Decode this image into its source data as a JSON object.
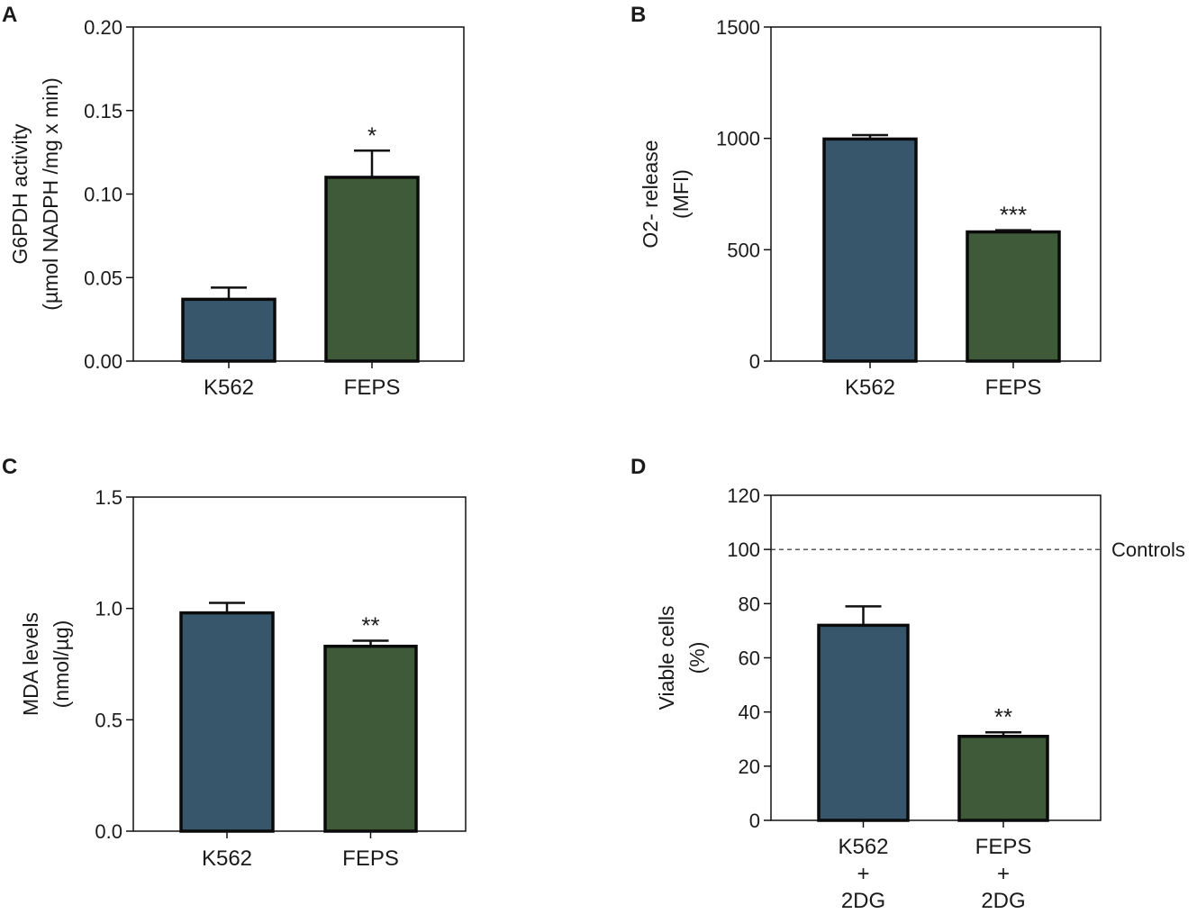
{
  "chart_data": [
    {
      "panel": "A",
      "type": "bar",
      "categories": [
        "K562",
        "FEPS"
      ],
      "values": [
        0.037,
        0.11
      ],
      "errors": [
        0.007,
        0.016
      ],
      "significance": [
        "",
        "*"
      ],
      "colors": [
        "#37566c",
        "#3f5a39"
      ],
      "ylabel": [
        "G6PDH activity",
        "(µmol NADPH /mg x min)"
      ],
      "ylim": [
        0,
        0.2
      ],
      "yticks": [
        "0.00",
        "0.05",
        "0.10",
        "0.15",
        "0.20"
      ],
      "ytick_values": [
        0,
        0.05,
        0.1,
        0.15,
        0.2
      ],
      "reference_line": null
    },
    {
      "panel": "B",
      "type": "bar",
      "categories": [
        "K562",
        "FEPS"
      ],
      "values": [
        997,
        580
      ],
      "errors": [
        18,
        8
      ],
      "significance": [
        "",
        "***"
      ],
      "colors": [
        "#37566c",
        "#3f5a39"
      ],
      "ylabel": [
        "O2- release",
        "(MFI)"
      ],
      "ylim": [
        0,
        1500
      ],
      "yticks": [
        "0",
        "500",
        "1000",
        "1500"
      ],
      "ytick_values": [
        0,
        500,
        1000,
        1500
      ],
      "reference_line": null
    },
    {
      "panel": "C",
      "type": "bar",
      "categories": [
        "K562",
        "FEPS"
      ],
      "values": [
        0.98,
        0.83
      ],
      "errors": [
        0.045,
        0.025
      ],
      "significance": [
        "",
        "**"
      ],
      "colors": [
        "#37566c",
        "#3f5a39"
      ],
      "ylabel": [
        "MDA levels",
        "(nmol/µg)"
      ],
      "ylim": [
        0,
        1.5
      ],
      "yticks": [
        "0.0",
        "0.5",
        "1.0",
        "1.5"
      ],
      "ytick_values": [
        0,
        0.5,
        1,
        1.5
      ],
      "reference_line": null
    },
    {
      "panel": "D",
      "type": "bar",
      "categories": [
        [
          "K562",
          "+",
          "2DG"
        ],
        [
          "FEPS",
          "+",
          "2DG"
        ]
      ],
      "values": [
        72,
        31
      ],
      "errors": [
        7,
        1.5
      ],
      "significance": [
        "",
        "**"
      ],
      "colors": [
        "#37566c",
        "#3f5a39"
      ],
      "ylabel": [
        "Viable cells",
        "(%)"
      ],
      "ylim": [
        0,
        120
      ],
      "yticks": [
        "0",
        "20",
        "40",
        "60",
        "80",
        "100",
        "120"
      ],
      "ytick_values": [
        0,
        20,
        40,
        60,
        80,
        100,
        120
      ],
      "reference_line": {
        "value": 100,
        "label": "Controls"
      }
    }
  ]
}
